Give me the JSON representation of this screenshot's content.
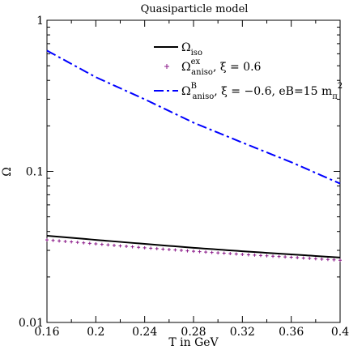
{
  "chart_data": {
    "type": "line",
    "title": "Quasiparticle model",
    "xlabel": "T in GeV",
    "ylabel": "Ω",
    "xlim": [
      0.16,
      0.4
    ],
    "ylim": [
      0.01,
      1
    ],
    "yscale": "log",
    "grid": false,
    "legend_position": "top-right",
    "x_ticks": [
      0.16,
      0.2,
      0.24,
      0.28,
      0.32,
      0.36,
      0.4
    ],
    "x_tick_labels": [
      "0.16",
      "0.2",
      "0.24",
      "0.28",
      "0.32",
      "0.36",
      "0.4"
    ],
    "y_ticks": [
      0.01,
      0.1,
      1
    ],
    "y_tick_labels": [
      "0.01",
      "0.1",
      "1"
    ],
    "series": [
      {
        "legend": {
          "base": "Ω",
          "sub": "iso",
          "sup": "",
          "tail": ""
        },
        "style": "solid",
        "color": "#000000",
        "x": [
          0.16,
          0.2,
          0.24,
          0.28,
          0.32,
          0.36,
          0.4
        ],
        "values": [
          0.0375,
          0.0352,
          0.0331,
          0.0312,
          0.0296,
          0.0282,
          0.0269
        ]
      },
      {
        "legend": {
          "base": "Ω",
          "sub": "aniso",
          "sup": "ex",
          "tail": ", ξ = 0.6"
        },
        "style": "markers",
        "color": "#8b1a89",
        "x": [
          0.16,
          0.2,
          0.24,
          0.28,
          0.32,
          0.36,
          0.4
        ],
        "values": [
          0.0352,
          0.0331,
          0.0312,
          0.0296,
          0.0282,
          0.027,
          0.0258
        ]
      },
      {
        "legend": {
          "base": "Ω",
          "sub": "aniso",
          "sup": "B",
          "tail": ", ξ = −0.6, eB=15 m",
          "tail_sub": "π",
          "tail_sup": "2"
        },
        "style": "dashdot",
        "color": "#0000ff",
        "x": [
          0.16,
          0.2,
          0.24,
          0.28,
          0.32,
          0.36,
          0.4
        ],
        "values": [
          0.63,
          0.42,
          0.3,
          0.21,
          0.155,
          0.115,
          0.083
        ]
      }
    ]
  }
}
